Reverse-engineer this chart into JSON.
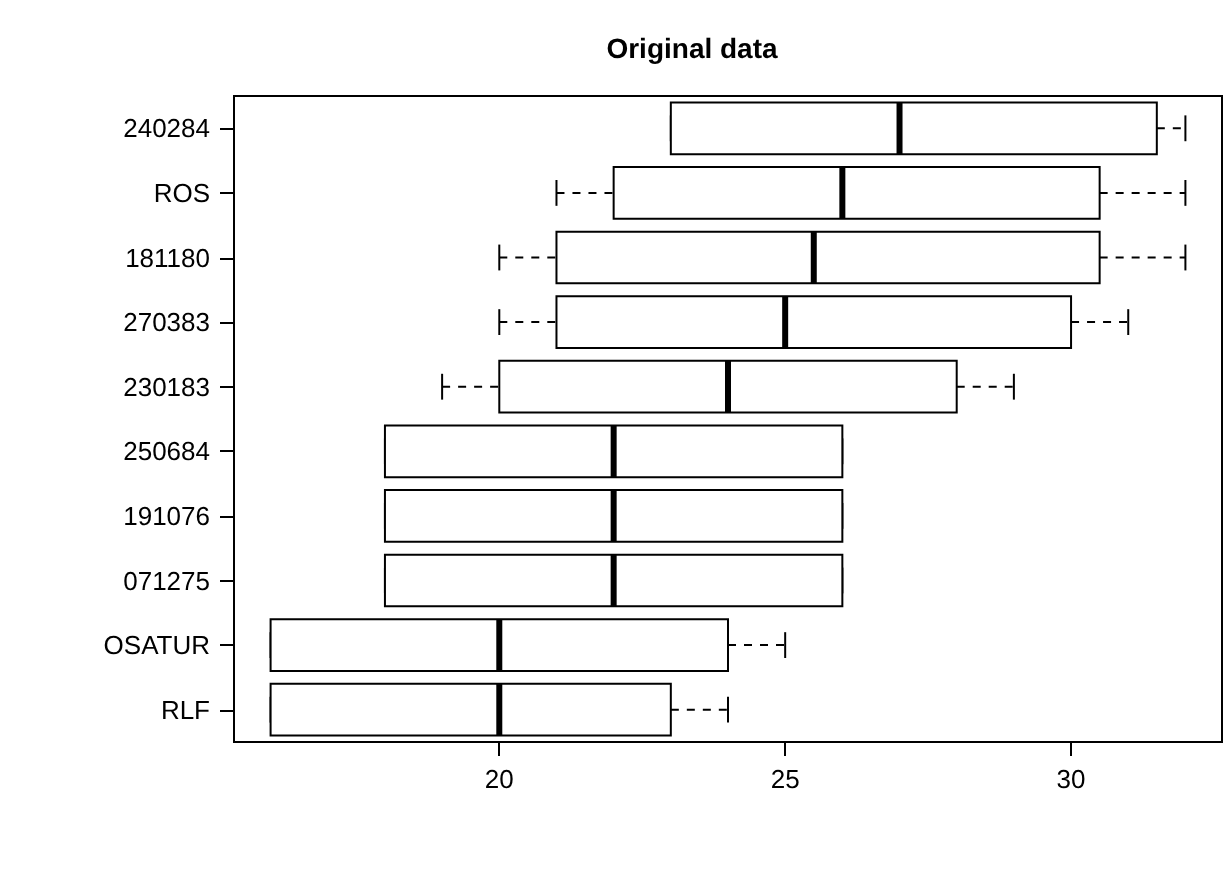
{
  "chart_data": {
    "type": "box",
    "title": "Original data",
    "orientation": "horizontal",
    "categories": [
      "240284",
      "ROS",
      "181180",
      "270383",
      "230183",
      "250684",
      "191076",
      "071275",
      "OSATUR",
      "RLF"
    ],
    "boxes": [
      {
        "low": 23,
        "q1": 23,
        "median": 27,
        "q3": 31.5,
        "high": 32
      },
      {
        "low": 21,
        "q1": 22,
        "median": 26,
        "q3": 30.5,
        "high": 32
      },
      {
        "low": 20,
        "q1": 21,
        "median": 25.5,
        "q3": 30.5,
        "high": 32
      },
      {
        "low": 20,
        "q1": 21,
        "median": 25,
        "q3": 30,
        "high": 31
      },
      {
        "low": 19,
        "q1": 20,
        "median": 24,
        "q3": 28,
        "high": 29
      },
      {
        "low": 18,
        "q1": 18,
        "median": 22,
        "q3": 26,
        "high": 26
      },
      {
        "low": 18,
        "q1": 18,
        "median": 22,
        "q3": 26,
        "high": 26
      },
      {
        "low": 18,
        "q1": 18,
        "median": 22,
        "q3": 26,
        "high": 26
      },
      {
        "low": 16,
        "q1": 16,
        "median": 20,
        "q3": 24,
        "high": 25
      },
      {
        "low": 16,
        "q1": 16,
        "median": 20,
        "q3": 23,
        "high": 24
      }
    ],
    "xlim": [
      15.36,
      32.64
    ],
    "xticks": [
      20,
      25,
      30
    ],
    "grid": false,
    "line_style": "dashed"
  }
}
